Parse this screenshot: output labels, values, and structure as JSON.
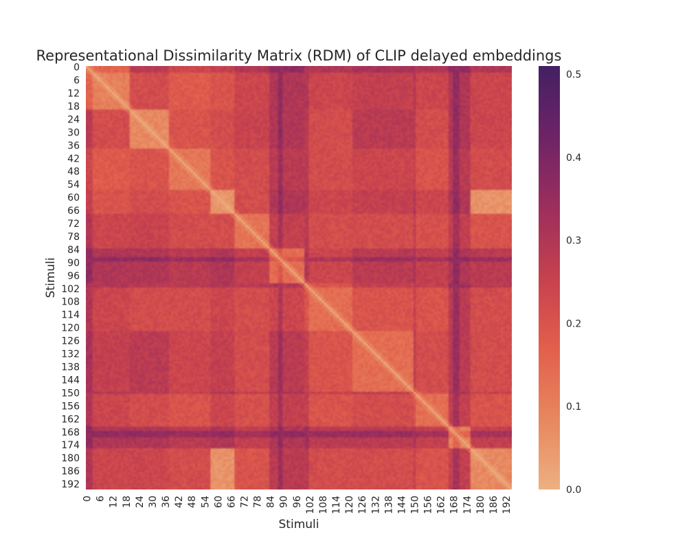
{
  "chart_data": {
    "type": "heatmap",
    "title": "Representational Dissimilarity Matrix (RDM) of CLIP delayed embeddings",
    "xlabel": "Stimuli",
    "ylabel": "Stimuli",
    "n_stimuli": 195,
    "tick_labels": [
      "0",
      "6",
      "12",
      "18",
      "24",
      "30",
      "36",
      "42",
      "48",
      "54",
      "60",
      "66",
      "72",
      "78",
      "84",
      "90",
      "96",
      "102",
      "108",
      "114",
      "120",
      "126",
      "132",
      "138",
      "144",
      "150",
      "156",
      "162",
      "168",
      "174",
      "180",
      "186",
      "192"
    ],
    "colorbar": {
      "colormap": "flare",
      "vmin": 0.0,
      "vmax": 0.51,
      "ticks": [
        "0.0",
        "0.1",
        "0.2",
        "0.3",
        "0.4",
        "0.5"
      ],
      "tick_values": [
        0.0,
        0.1,
        0.2,
        0.3,
        0.4,
        0.5
      ],
      "colors": [
        "#edb081",
        "#e7875f",
        "#e25f4c",
        "#c6414e",
        "#9c2e5d",
        "#6d2466",
        "#432064"
      ]
    },
    "block_means": {
      "boundaries": [
        0,
        20,
        38,
        57,
        68,
        84,
        100,
        122,
        150,
        166,
        176,
        195
      ],
      "values": [
        [
          0.1,
          0.22,
          0.18,
          0.2,
          0.24,
          0.3,
          0.24,
          0.26,
          0.24,
          0.3,
          0.24
        ],
        [
          0.22,
          0.08,
          0.2,
          0.22,
          0.25,
          0.3,
          0.22,
          0.28,
          0.22,
          0.3,
          0.24
        ],
        [
          0.18,
          0.2,
          0.12,
          0.2,
          0.22,
          0.28,
          0.22,
          0.24,
          0.2,
          0.28,
          0.22
        ],
        [
          0.2,
          0.22,
          0.2,
          0.06,
          0.22,
          0.3,
          0.24,
          0.26,
          0.24,
          0.3,
          0.06
        ],
        [
          0.24,
          0.25,
          0.22,
          0.22,
          0.13,
          0.26,
          0.22,
          0.22,
          0.21,
          0.26,
          0.2
        ],
        [
          0.3,
          0.3,
          0.28,
          0.3,
          0.26,
          0.14,
          0.24,
          0.28,
          0.26,
          0.3,
          0.28
        ],
        [
          0.24,
          0.22,
          0.22,
          0.24,
          0.22,
          0.24,
          0.14,
          0.2,
          0.2,
          0.28,
          0.22
        ],
        [
          0.26,
          0.28,
          0.24,
          0.26,
          0.22,
          0.28,
          0.2,
          0.14,
          0.22,
          0.28,
          0.22
        ],
        [
          0.24,
          0.22,
          0.2,
          0.24,
          0.21,
          0.26,
          0.2,
          0.22,
          0.14,
          0.26,
          0.2
        ],
        [
          0.3,
          0.3,
          0.28,
          0.3,
          0.26,
          0.3,
          0.28,
          0.28,
          0.26,
          0.1,
          0.26
        ],
        [
          0.24,
          0.24,
          0.22,
          0.06,
          0.2,
          0.28,
          0.22,
          0.22,
          0.2,
          0.26,
          0.08
        ]
      ]
    },
    "dark_rows": [
      0,
      1,
      2,
      88,
      89,
      100,
      101,
      150,
      168,
      169,
      170
    ]
  }
}
